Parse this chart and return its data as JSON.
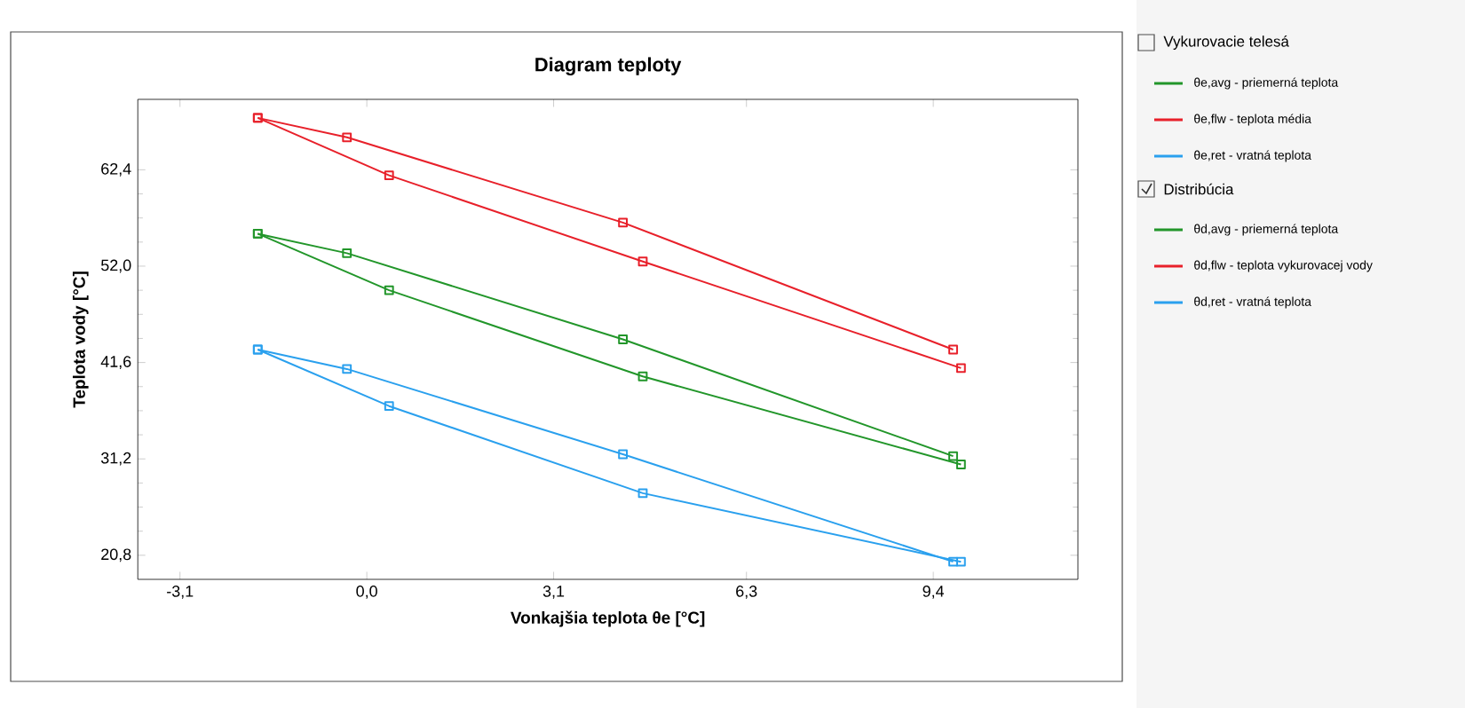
{
  "chart_data": {
    "type": "line",
    "title": "Diagram teploty",
    "xlabel": "Vonkajšia teplota θe [°C]",
    "ylabel": "Teplota vody [°C]",
    "xlim": [
      -3.8,
      11.8
    ],
    "ylim": [
      18.2,
      70
    ],
    "xticks": [
      {
        "value": -3.1,
        "label": "-3,1"
      },
      {
        "value": 0,
        "label": "0,0"
      },
      {
        "value": 3.1,
        "label": "3,1"
      },
      {
        "value": 6.3,
        "label": "6,3"
      },
      {
        "value": 9.4,
        "label": "9,4"
      }
    ],
    "yticks": [
      {
        "value": 20.8,
        "label": "20,8"
      },
      {
        "value": 31.2,
        "label": "31,2"
      },
      {
        "value": 41.6,
        "label": "41,6"
      },
      {
        "value": 52.0,
        "label": "52,0"
      },
      {
        "value": 62.4,
        "label": "62,4"
      }
    ],
    "grid": false,
    "legend": "right",
    "marker": "square",
    "line_style": "solid",
    "annotations": [
      "Vykurovacie telesá",
      "Distribúcia"
    ],
    "series": [
      {
        "name": "θe,avg - priemerná teplota",
        "color": "#22962a",
        "x": [
          -1.81,
          -0.33,
          4.25,
          9.73
        ],
        "values": [
          55.5,
          53.4,
          44.1,
          31.5
        ]
      },
      {
        "name": "θe,flw - teplota média",
        "color": "#e8202a",
        "x": [
          -1.81,
          -0.33,
          4.25,
          9.73
        ],
        "values": [
          68.0,
          65.9,
          56.7,
          43.0
        ]
      },
      {
        "name": "θe,ret - vratná teplota",
        "color": "#2aa0ee",
        "x": [
          -1.81,
          -0.33,
          4.25,
          9.73
        ],
        "values": [
          43.0,
          40.9,
          31.7,
          20.1
        ]
      },
      {
        "name": "θd,avg - priemerná teplota",
        "color": "#22962a",
        "x": [
          -1.81,
          0.37,
          4.58,
          9.86
        ],
        "values": [
          55.5,
          49.4,
          40.1,
          30.6
        ]
      },
      {
        "name": "θd,flw - teplota vykurovacej vody",
        "color": "#e8202a",
        "x": [
          -1.81,
          0.37,
          4.58,
          9.86
        ],
        "values": [
          68.0,
          61.8,
          52.5,
          41.0
        ]
      },
      {
        "name": "θd,ret - vratná teplota",
        "color": "#2aa0ee",
        "x": [
          -1.81,
          0.37,
          4.58,
          9.86
        ],
        "values": [
          43.0,
          36.9,
          27.5,
          20.1
        ]
      }
    ]
  }
}
